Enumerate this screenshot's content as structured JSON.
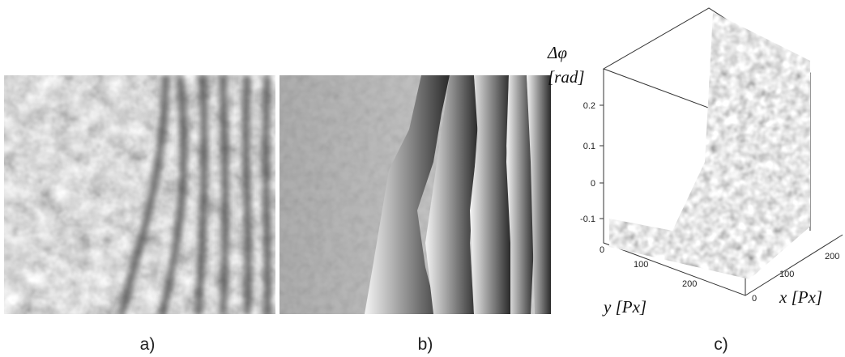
{
  "panels": [
    {
      "caption": "a)"
    },
    {
      "caption": "b)"
    },
    {
      "caption": "c)",
      "z_label": [
        "Δφ",
        "[rad]"
      ],
      "z_ticks": [
        "0.2",
        "0.1",
        "0",
        "-0.1"
      ],
      "y_label": "y  [Px]",
      "y_ticks": [
        "0",
        "100",
        "200"
      ],
      "x_label": "x  [Px]",
      "x_ticks": [
        "0",
        "100",
        "200"
      ]
    }
  ]
}
